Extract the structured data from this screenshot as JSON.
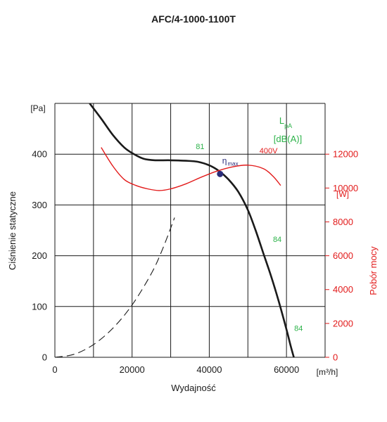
{
  "chart_data": {
    "type": "line",
    "title": "AFC/4-1000-1100T",
    "xlabel": "Wydajność",
    "xunit": "[m³/h]",
    "ylabel": "Ciśnienie statyczne",
    "yunit": "[Pa]",
    "y2label": "Pobór mocy",
    "y2unit": "[W]",
    "xlim": [
      0,
      70000
    ],
    "ylim": [
      0,
      500
    ],
    "y2lim": [
      0,
      12000
    ],
    "y2_axis_max": 15000,
    "xticks": [
      0,
      20000,
      40000,
      60000
    ],
    "yticks": [
      0,
      100,
      200,
      300,
      400
    ],
    "y2ticks": [
      0,
      2000,
      4000,
      6000,
      8000,
      10000,
      12000
    ],
    "x_gridlines": [
      10000,
      20000,
      30000,
      40000,
      50000,
      60000,
      70000
    ],
    "y_gridlines": [
      0,
      100,
      200,
      300,
      400,
      500
    ],
    "grid": true,
    "noise_label": {
      "line1": "L",
      "sub": "pA",
      "line2": "[dB(A)]"
    },
    "series": [
      {
        "name": "",
        "axis": "left",
        "role": "pressure",
        "color": "#1a1a1a",
        "x": [
          9000,
          12000,
          15000,
          18000,
          20500,
          23000,
          26000,
          30000,
          34000,
          37000,
          40000,
          42500,
          45000,
          47500,
          50000,
          52000,
          54000,
          56000,
          58000,
          60000,
          61000,
          61900
        ],
        "y": [
          500,
          470,
          438,
          413,
          400,
          391,
          388,
          388,
          387,
          385,
          378,
          367,
          350,
          326,
          290,
          250,
          205,
          160,
          110,
          55,
          25,
          0
        ]
      },
      {
        "name": "400V",
        "axis": "right",
        "role": "power",
        "color": "#e21a1a",
        "x": [
          12000,
          15000,
          18000,
          21000,
          24000,
          27000,
          30000,
          34000,
          38000,
          42000,
          46000,
          50000,
          54000,
          56500,
          58500
        ],
        "y": [
          12400,
          11300,
          10500,
          10150,
          9950,
          9850,
          9950,
          10250,
          10650,
          11000,
          11250,
          11350,
          11150,
          10700,
          10150
        ]
      },
      {
        "name": "",
        "axis": "left",
        "role": "system",
        "color": "#1a1a1a",
        "style": "dashed",
        "x": [
          0,
          5000,
          10000,
          15000,
          20000,
          25000,
          28000,
          31000
        ],
        "y": [
          0,
          6,
          25,
          57,
          103,
          165,
          215,
          275
        ]
      }
    ],
    "annotations": [
      {
        "text": "81",
        "x": 36500,
        "y": 410,
        "axis": "left",
        "color": "#2db34a"
      },
      {
        "text": "84",
        "x": 56500,
        "y": 227,
        "axis": "left",
        "color": "#2db34a"
      },
      {
        "text": "84",
        "x": 62000,
        "y": 52,
        "axis": "left",
        "color": "#2db34a"
      },
      {
        "text": "400V",
        "x": 53000,
        "y": 12050,
        "axis": "right",
        "color": "#e21a1a"
      }
    ],
    "eta_max": {
      "symbol": "η",
      "sub": "max",
      "x": 42800,
      "y": 361,
      "color": "#2b2d7a"
    }
  }
}
